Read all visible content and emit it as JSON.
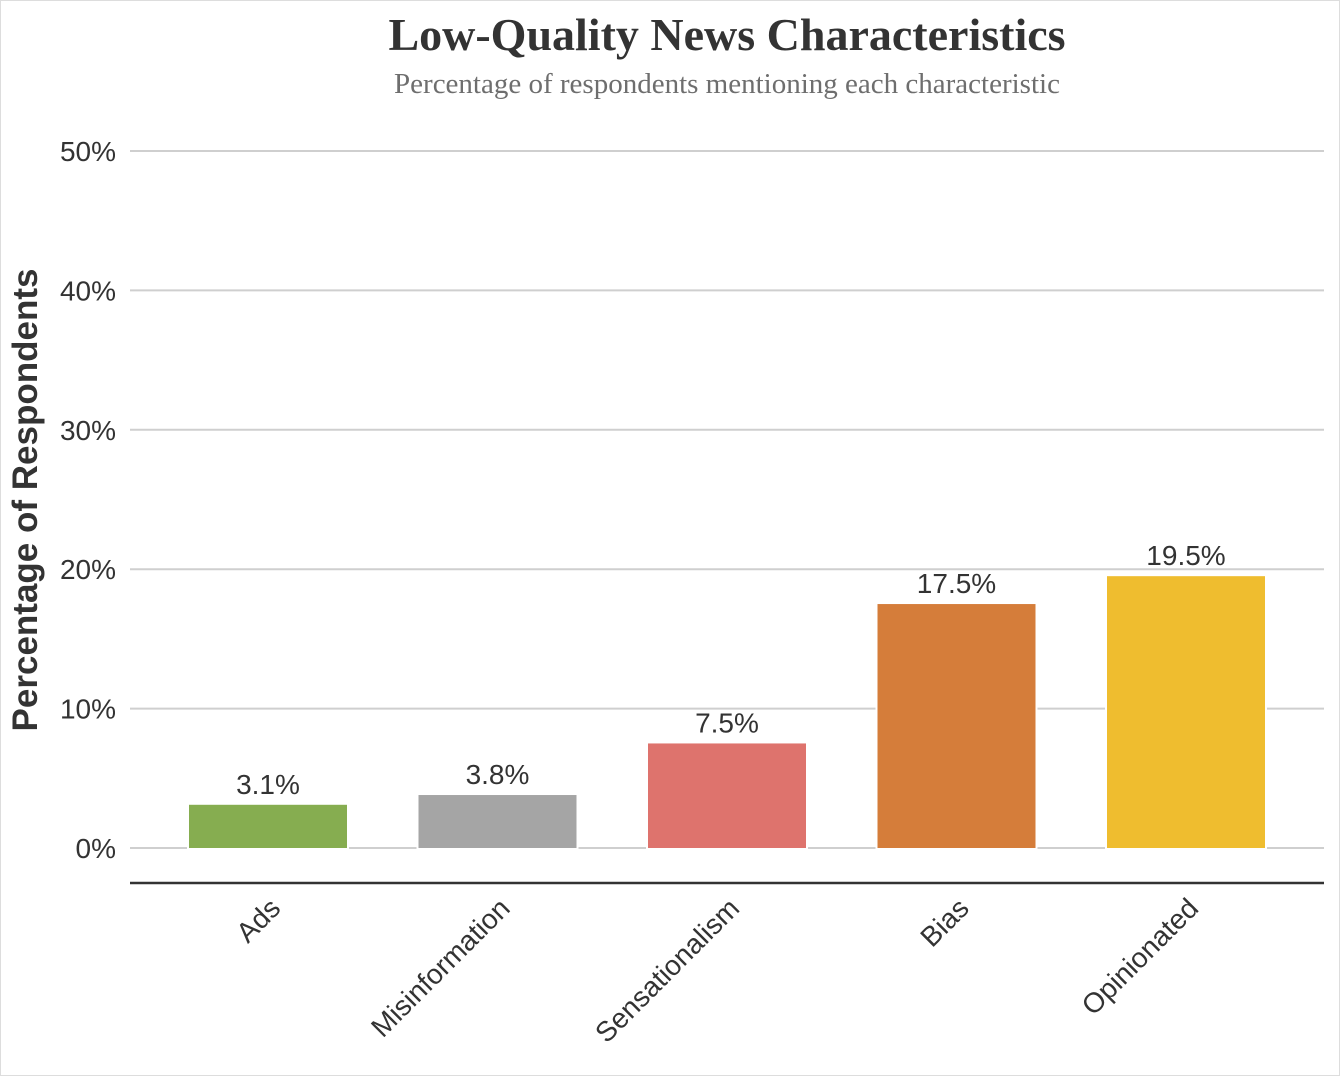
{
  "chart_data": {
    "type": "bar",
    "title": "Low-Quality News Characteristics",
    "subtitle": "Percentage of respondents mentioning each characteristic",
    "xlabel": "",
    "ylabel": "Percentage of Respondents",
    "categories": [
      "Ads",
      "Misinformation",
      "Sensationalism",
      "Bias",
      "Opinionated"
    ],
    "values": [
      3.1,
      3.8,
      7.5,
      17.5,
      19.5
    ],
    "value_labels": [
      "3.1%",
      "3.8%",
      "7.5%",
      "17.5%",
      "19.5%"
    ],
    "colors": [
      "#86ad50",
      "#a5a5a5",
      "#de736d",
      "#d57d3a",
      "#efbd2f"
    ],
    "ylim": [
      0,
      50
    ],
    "yticks": [
      0,
      10,
      20,
      30,
      40,
      50
    ],
    "ytick_labels": [
      "0%",
      "10%",
      "20%",
      "30%",
      "40%",
      "50%"
    ],
    "grid": true,
    "legend": "none"
  }
}
